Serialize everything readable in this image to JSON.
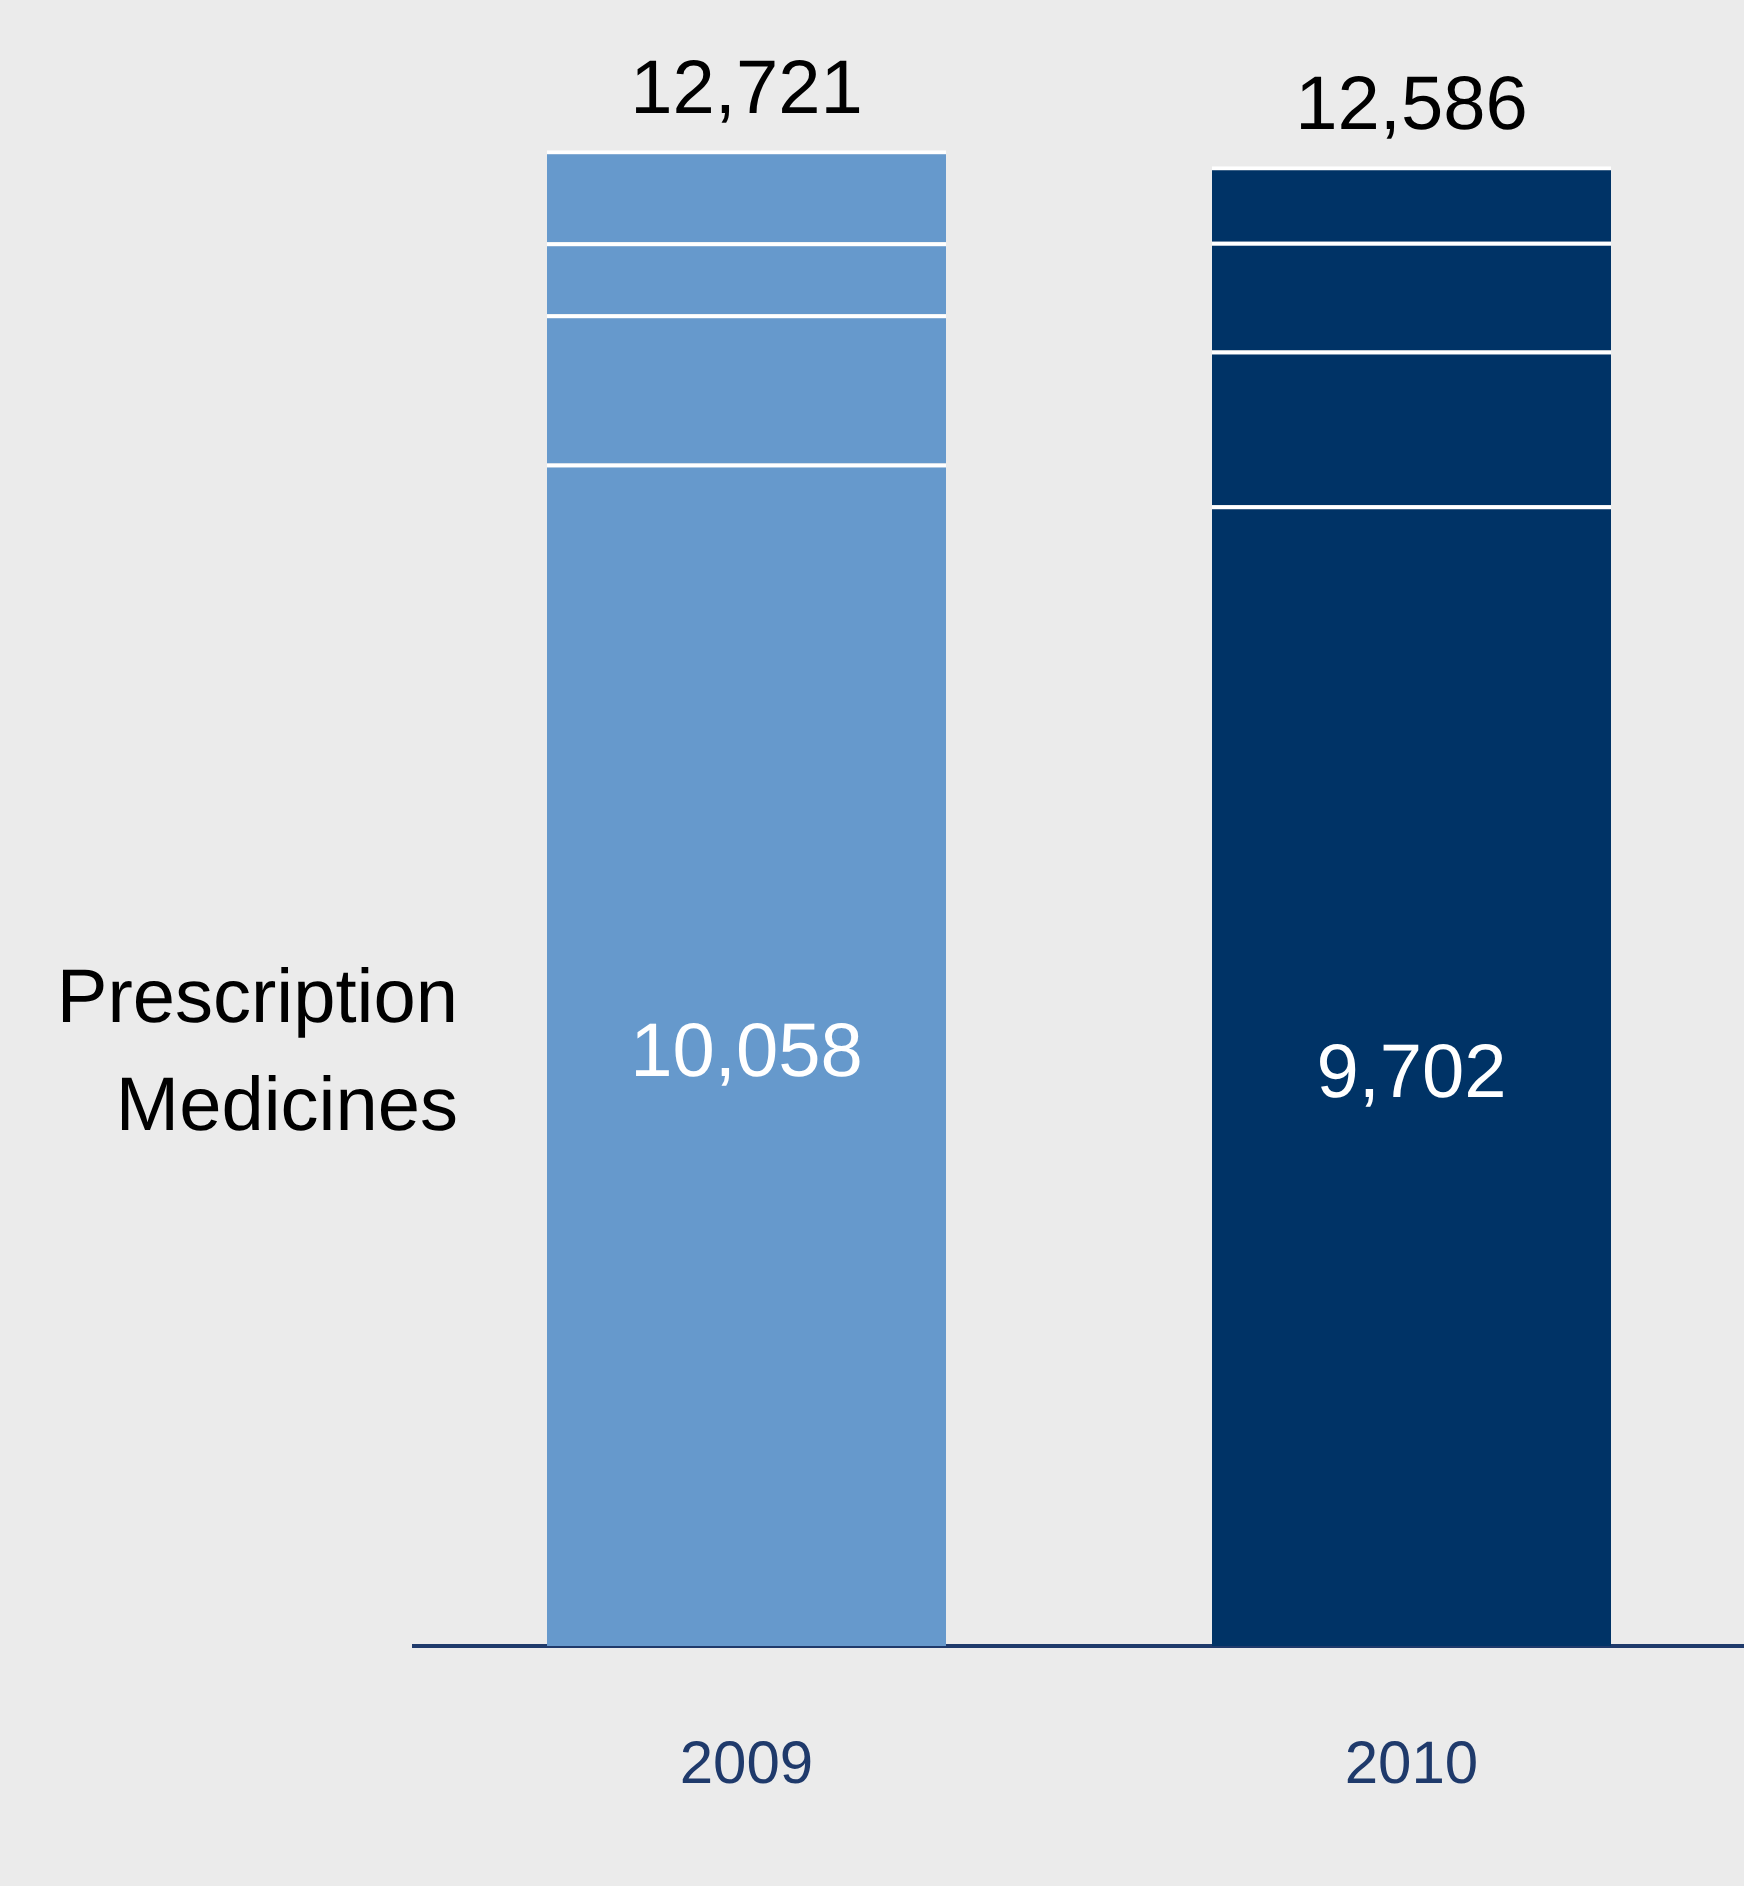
{
  "chart_data": {
    "type": "bar",
    "stacked": true,
    "categories": [
      "2009",
      "2010"
    ],
    "series": [
      {
        "name": "Prescription Medicines",
        "colors": [
          "#6699cc",
          "#003366"
        ],
        "values": [
          10058,
          9702
        ],
        "value_labels": [
          "10,058",
          "9,702"
        ]
      },
      {
        "colors": [
          "#6699cc",
          "#003366"
        ],
        "values": [
          1270,
          1317
        ]
      },
      {
        "colors": [
          "#6699cc",
          "#003366"
        ],
        "values": [
          612,
          925
        ]
      },
      {
        "colors": [
          "#6699cc",
          "#003366"
        ],
        "values": [
          781,
          642
        ]
      }
    ],
    "totals": [
      "12,721",
      "12,586"
    ],
    "grid": false,
    "legend": false,
    "tick_labels": "x"
  }
}
